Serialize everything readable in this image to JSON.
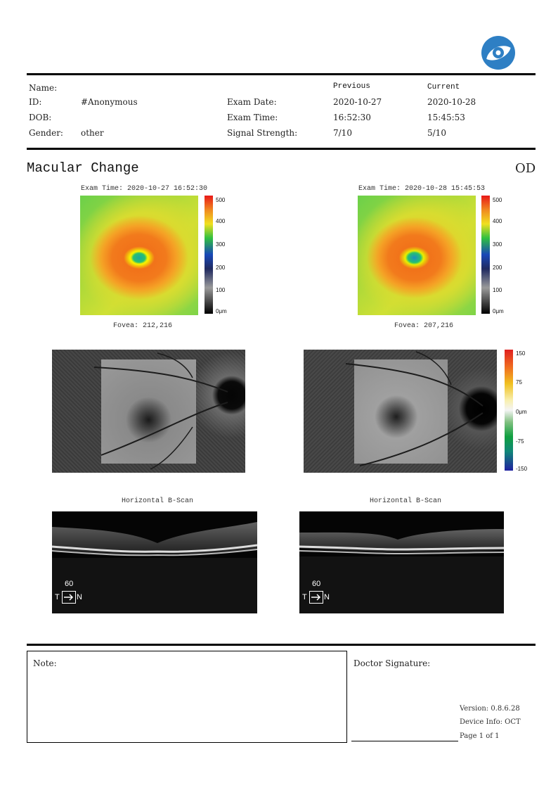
{
  "header": {
    "labels": {
      "name": "Name:",
      "id": "ID:",
      "dob": "DOB:",
      "gender": "Gender:"
    },
    "values": {
      "id": "#Anonymous",
      "gender": "other"
    },
    "exam_labels": {
      "exam_date": "Exam Date:",
      "exam_time": "Exam Time:",
      "signal": "Signal Strength:"
    },
    "previous": {
      "title": "Previous",
      "date": "2020-10-27",
      "time": "16:52:30",
      "signal": "7/10"
    },
    "current": {
      "title": "Current",
      "date": "2020-10-28",
      "time": "15:45:53",
      "signal": "5/10"
    }
  },
  "section": {
    "title": "Macular Change",
    "eye": "OD"
  },
  "maps": {
    "left": {
      "exam_time": "Exam Time: 2020-10-27 16:52:30",
      "fovea": "Fovea: 212,216"
    },
    "right": {
      "exam_time": "Exam Time: 2020-10-28 15:45:53",
      "fovea": "Fovea: 207,216"
    },
    "thickness_scale": [
      "500",
      "400",
      "300",
      "200",
      "100",
      "0μm"
    ],
    "change_scale": [
      "150",
      "75",
      "0μm",
      "-75",
      "-150"
    ]
  },
  "bscans": {
    "left": {
      "label": "Horizontal B-Scan",
      "scale": "60",
      "t": "T",
      "n": "N"
    },
    "right": {
      "label": "Horizontal B-Scan",
      "scale": "60",
      "t": "T",
      "n": "N"
    }
  },
  "footer": {
    "note_label": "Note:",
    "doctor_label": "Doctor Signature:",
    "version": "Version: 0.8.6.28",
    "device": "Device Info: OCT",
    "page": "Page 1 of 1"
  },
  "colors": {
    "logo": "#2e7fc4"
  }
}
